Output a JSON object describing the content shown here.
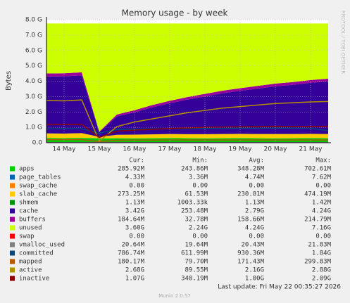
{
  "chart_data": {
    "type": "area",
    "title": "Memory usage - by week",
    "y_label": "Bytes",
    "side_text": "RRDTOOL / TOBI OETIKER",
    "last_update": "Last update: Fri May 22 00:35:27 2026",
    "footer": "Munin 2.0.57",
    "stats_headers": [
      "Cur:",
      "Min:",
      "Avg:",
      "Max:"
    ],
    "categories": [
      null,
      "14 May",
      null,
      "15 May",
      null,
      "16 May",
      null,
      "17 May",
      null,
      "18 May",
      null,
      "19 May",
      null,
      "20 May",
      null,
      "21 May",
      null
    ],
    "ylim": [
      0,
      8
    ],
    "yticks": [
      {
        "value": 0,
        "label": "0.0"
      },
      {
        "value": 1,
        "label": "1.0 G"
      },
      {
        "value": 2,
        "label": "2.0 G"
      },
      {
        "value": 3,
        "label": "3.0 G"
      },
      {
        "value": 4,
        "label": "4.0 G"
      },
      {
        "value": 5,
        "label": "5.0 G"
      },
      {
        "value": 6,
        "label": "6.0 G"
      },
      {
        "value": 7,
        "label": "7.0 G"
      },
      {
        "value": 8,
        "label": "8.0 G"
      }
    ],
    "grid": true,
    "series": [
      {
        "name": "apps",
        "color": "#00cc00",
        "style": "area",
        "values": [
          0.3,
          0.29,
          0.31,
          0.28,
          0.29,
          0.28,
          0.29,
          0.3,
          0.29,
          0.28,
          0.29,
          0.3,
          0.29,
          0.28,
          0.29,
          0.3,
          0.29
        ],
        "stats": [
          "285.92M",
          "243.86M",
          "348.28M",
          "702.61M"
        ]
      },
      {
        "name": "page_tables",
        "color": "#0066b3",
        "style": "area",
        "values": [
          0.004,
          0.004,
          0.004,
          0.004,
          0.004,
          0.004,
          0.004,
          0.004,
          0.004,
          0.004,
          0.004,
          0.004,
          0.004,
          0.004,
          0.004,
          0.004,
          0.004
        ],
        "stats": [
          "4.33M",
          "3.36M",
          "4.74M",
          "7.62M"
        ]
      },
      {
        "name": "swap_cache",
        "color": "#ff8000",
        "style": "area",
        "values": [
          0,
          0,
          0,
          0,
          0,
          0,
          0,
          0,
          0,
          0,
          0,
          0,
          0,
          0,
          0,
          0,
          0
        ],
        "stats": [
          "0.00",
          "0.00",
          "0.00",
          "0.00"
        ]
      },
      {
        "name": "slab_cache",
        "color": "#ffcc00",
        "style": "area",
        "values": [
          0.3,
          0.3,
          0.31,
          0.1,
          0.22,
          0.24,
          0.25,
          0.26,
          0.26,
          0.27,
          0.27,
          0.27,
          0.27,
          0.28,
          0.27,
          0.27,
          0.27
        ],
        "stats": [
          "273.25M",
          "61.53M",
          "230.81M",
          "474.19M"
        ]
      },
      {
        "name": "shmem",
        "color": "#008f00",
        "style": "area",
        "values": [
          0.001,
          0.001,
          0.001,
          0.001,
          0.001,
          0.001,
          0.001,
          0.001,
          0.001,
          0.001,
          0.001,
          0.001,
          0.001,
          0.001,
          0.001,
          0.001,
          0.001
        ],
        "stats": [
          "1.13M",
          "1003.33k",
          "1.13M",
          "1.42M"
        ]
      },
      {
        "name": "cache",
        "color": "#330099",
        "style": "area",
        "values": [
          3.7,
          3.72,
          3.75,
          0.3,
          1.2,
          1.45,
          1.75,
          2.0,
          2.25,
          2.45,
          2.65,
          2.8,
          2.95,
          3.1,
          3.2,
          3.32,
          3.42
        ],
        "stats": [
          "3.42G",
          "253.48M",
          "2.79G",
          "4.24G"
        ]
      },
      {
        "name": "buffers",
        "color": "#990099",
        "style": "area",
        "values": [
          0.2,
          0.2,
          0.2,
          0.04,
          0.12,
          0.14,
          0.15,
          0.16,
          0.16,
          0.17,
          0.17,
          0.17,
          0.18,
          0.18,
          0.18,
          0.18,
          0.18
        ],
        "stats": [
          "184.64M",
          "32.78M",
          "158.66M",
          "214.79M"
        ]
      },
      {
        "name": "unused",
        "color": "#ccff00",
        "style": "area",
        "values": [
          3.25,
          3.24,
          3.18,
          7.03,
          5.92,
          5.64,
          5.31,
          5.03,
          4.79,
          4.58,
          4.37,
          4.21,
          4.06,
          3.91,
          3.81,
          3.68,
          3.59
        ],
        "stats": [
          "3.60G",
          "2.24G",
          "4.24G",
          "7.16G"
        ]
      },
      {
        "name": "swap",
        "color": "#ff0000",
        "style": "area",
        "values": [
          0,
          0,
          0,
          0,
          0,
          0,
          0,
          0,
          0,
          0,
          0,
          0,
          0,
          0,
          0,
          0,
          0
        ],
        "stats": [
          "0.00",
          "0.00",
          "0.00",
          "0.00"
        ]
      },
      {
        "name": "vmalloc_used",
        "color": "#808080",
        "style": "line",
        "values": [
          0.02,
          0.02,
          0.02,
          0.02,
          0.02,
          0.02,
          0.02,
          0.02,
          0.02,
          0.02,
          0.02,
          0.02,
          0.02,
          0.02,
          0.02,
          0.02,
          0.02
        ],
        "stats": [
          "20.64M",
          "19.64M",
          "20.43M",
          "21.83M"
        ]
      },
      {
        "name": "committed",
        "color": "#00487d",
        "style": "line",
        "values": [
          0.9,
          0.92,
          0.91,
          0.62,
          0.85,
          0.88,
          0.9,
          0.92,
          0.91,
          0.93,
          0.92,
          0.94,
          0.93,
          0.95,
          0.94,
          0.93,
          0.79
        ],
        "stats": [
          "786.74M",
          "611.99M",
          "930.36M",
          "1.84G"
        ]
      },
      {
        "name": "mapped",
        "color": "#b35a00",
        "style": "line",
        "values": [
          0.2,
          0.2,
          0.2,
          0.08,
          0.16,
          0.17,
          0.17,
          0.18,
          0.18,
          0.18,
          0.18,
          0.18,
          0.18,
          0.18,
          0.18,
          0.18,
          0.18
        ],
        "stats": [
          "180.17M",
          "79.70M",
          "171.43M",
          "299.83M"
        ]
      },
      {
        "name": "active",
        "color": "#b38f00",
        "style": "line",
        "values": [
          2.75,
          2.72,
          2.78,
          0.1,
          1.05,
          1.35,
          1.55,
          1.75,
          1.95,
          2.1,
          2.25,
          2.35,
          2.45,
          2.55,
          2.6,
          2.65,
          2.68
        ],
        "stats": [
          "2.68G",
          "89.55M",
          "2.16G",
          "2.88G"
        ]
      },
      {
        "name": "inactive",
        "color": "#8f0000",
        "style": "line",
        "values": [
          1.2,
          1.18,
          1.2,
          0.34,
          0.75,
          0.82,
          0.87,
          0.92,
          0.96,
          1.0,
          1.02,
          1.03,
          1.04,
          1.05,
          1.06,
          1.06,
          1.07
        ],
        "stats": [
          "1.07G",
          "340.19M",
          "1.00G",
          "2.09G"
        ]
      }
    ]
  }
}
